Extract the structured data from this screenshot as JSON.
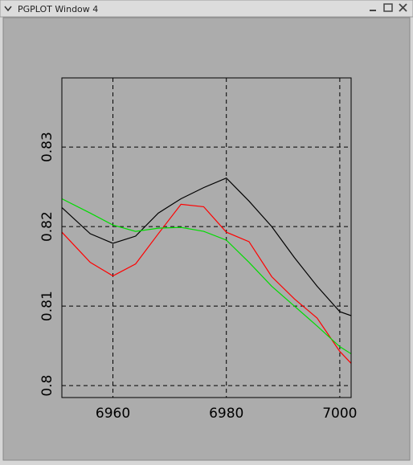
{
  "window": {
    "title": "PGPLOT Window 4"
  },
  "chart_data": {
    "type": "line",
    "x": [
      6951,
      6956,
      6960,
      6964,
      6968,
      6972,
      6976,
      6980,
      6984,
      6988,
      6992,
      6996,
      7000,
      7002
    ],
    "series": [
      {
        "color": "#000000",
        "values": [
          0.8224,
          0.8191,
          0.8179,
          0.8188,
          0.8217,
          0.8235,
          0.8249,
          0.8261,
          0.8232,
          0.82,
          0.8161,
          0.8125,
          0.8093,
          0.8088
        ]
      },
      {
        "color": "#ff0000",
        "values": [
          0.8193,
          0.8155,
          0.8138,
          0.8153,
          0.8191,
          0.8228,
          0.8225,
          0.8193,
          0.8181,
          0.8137,
          0.8109,
          0.8085,
          0.8043,
          0.8028
        ]
      },
      {
        "color": "#00dd00",
        "values": [
          0.8235,
          0.8217,
          0.8202,
          0.8194,
          0.8198,
          0.8199,
          0.8194,
          0.8183,
          0.8155,
          0.8125,
          0.81,
          0.8075,
          0.8049,
          0.804
        ]
      }
    ],
    "xlim": [
      6951,
      7002
    ],
    "ylim": [
      0.7985,
      0.8387
    ],
    "xticks": [
      6960,
      6980,
      7000
    ],
    "yticks": [
      0.8,
      0.81,
      0.82,
      0.83
    ],
    "grid": true
  }
}
